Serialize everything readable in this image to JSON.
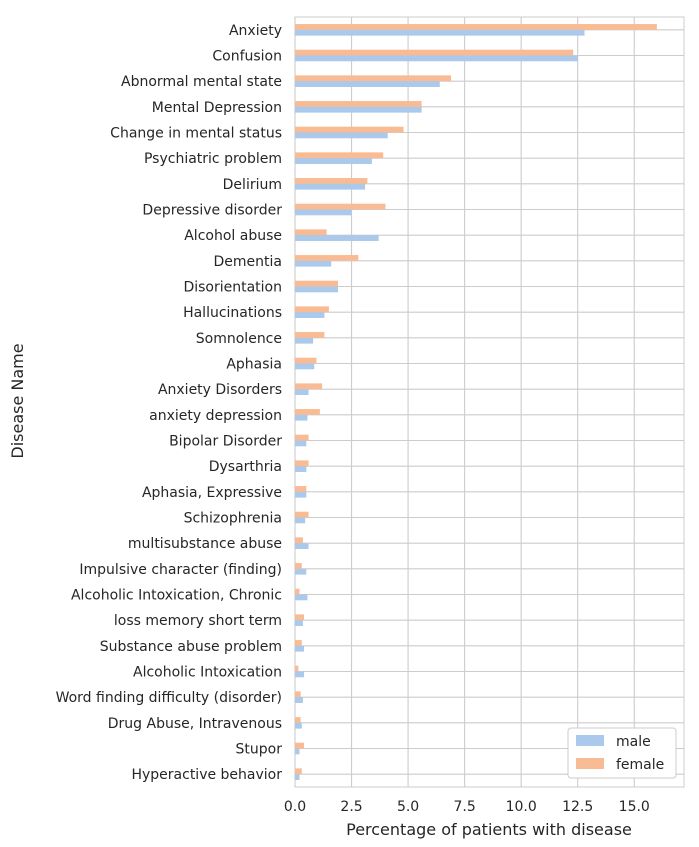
{
  "chart_data": {
    "type": "bar",
    "orientation": "horizontal",
    "xlabel": "Percentage of patients with disease",
    "ylabel": "Disease Name",
    "xlim": [
      0,
      17.2
    ],
    "xticks": [
      "0.0",
      "2.5",
      "5.0",
      "7.5",
      "10.0",
      "12.5",
      "15.0"
    ],
    "grid": true,
    "legend_position": "bottom-right",
    "categories": [
      "Anxiety",
      "Confusion",
      "Abnormal mental state",
      "Mental Depression",
      "Change in mental status",
      "Psychiatric problem",
      "Delirium",
      "Depressive disorder",
      "Alcohol abuse",
      "Dementia",
      "Disorientation",
      "Hallucinations",
      "Somnolence",
      "Aphasia",
      "Anxiety Disorders",
      "anxiety depression",
      "Bipolar Disorder",
      "Dysarthria",
      "Aphasia, Expressive",
      "Schizophrenia",
      "multisubstance abuse",
      "Impulsive character (finding)",
      "Alcoholic Intoxication, Chronic",
      "loss memory short term",
      "Substance abuse problem",
      "Alcoholic Intoxication",
      "Word finding difficulty (disorder)",
      "Drug Abuse, Intravenous",
      "Stupor",
      "Hyperactive behavior"
    ],
    "series": [
      {
        "name": "male",
        "color": "#abc9ea",
        "values": [
          12.8,
          12.5,
          6.4,
          5.6,
          4.1,
          3.4,
          3.1,
          2.5,
          3.7,
          1.6,
          1.9,
          1.3,
          0.8,
          0.85,
          0.6,
          0.55,
          0.5,
          0.5,
          0.5,
          0.45,
          0.6,
          0.5,
          0.55,
          0.35,
          0.4,
          0.4,
          0.35,
          0.3,
          0.2,
          0.2
        ]
      },
      {
        "name": "female",
        "color": "#f9bb94",
        "values": [
          16.0,
          12.3,
          6.9,
          5.6,
          4.8,
          3.9,
          3.2,
          4.0,
          1.4,
          2.8,
          1.9,
          1.5,
          1.3,
          0.95,
          1.2,
          1.1,
          0.6,
          0.6,
          0.5,
          0.6,
          0.35,
          0.3,
          0.2,
          0.4,
          0.3,
          0.15,
          0.25,
          0.25,
          0.4,
          0.3
        ]
      }
    ]
  }
}
